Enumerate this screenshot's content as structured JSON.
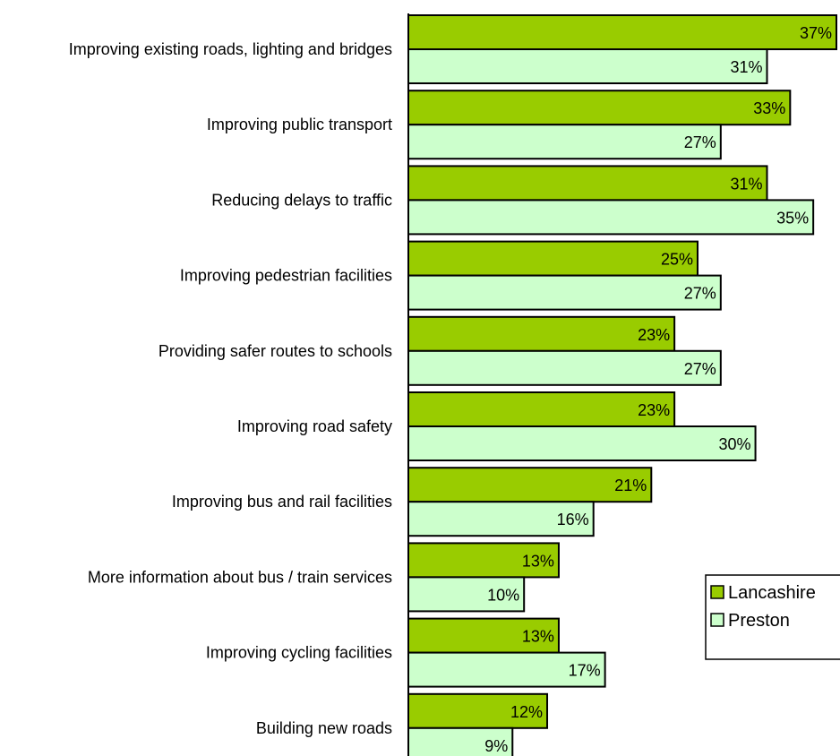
{
  "chart_data": {
    "type": "bar",
    "orientation": "horizontal",
    "categories": [
      "Improving existing roads, lighting and bridges",
      "Improving public transport",
      "Reducing delays to traffic",
      "Improving pedestrian facilities",
      "Providing safer routes to schools",
      "Improving road safety",
      "Improving bus and rail facilities",
      "More information about bus / train services",
      "Improving cycling facilities",
      "Building new roads"
    ],
    "series": [
      {
        "name": "Lancashire",
        "color": "#99cc00",
        "values": [
          37,
          33,
          31,
          25,
          23,
          23,
          21,
          13,
          13,
          12
        ],
        "labels": [
          "37%",
          "33%",
          "31%",
          "25%",
          "23%",
          "23%",
          "21%",
          "13%",
          "13%",
          "12%"
        ]
      },
      {
        "name": "Preston",
        "color": "#ccffcc",
        "values": [
          31,
          27,
          35,
          27,
          27,
          30,
          16,
          10,
          17,
          9
        ],
        "labels": [
          "31%",
          "27%",
          "35%",
          "27%",
          "27%",
          "30%",
          "16%",
          "10%",
          "17%",
          "9%"
        ]
      }
    ],
    "value_unit": "%",
    "xlim": [
      0,
      37
    ],
    "grid": false,
    "legend_position": "right"
  }
}
